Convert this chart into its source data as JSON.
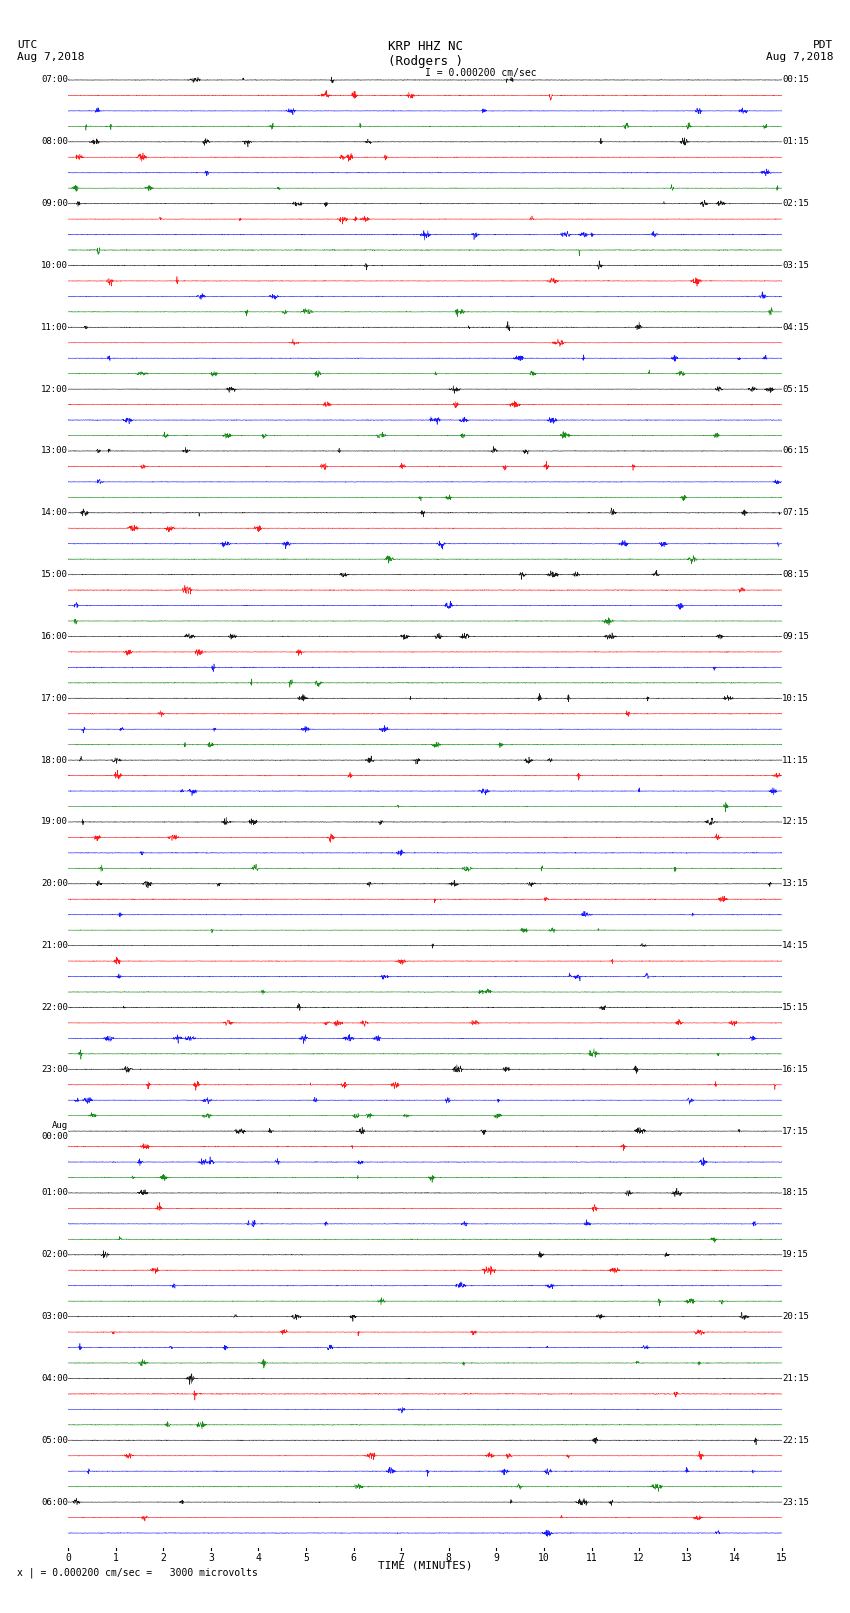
{
  "title_center": "KRP HHZ NC\n(Rodgers )",
  "title_left": "UTC\nAug 7,2018",
  "title_right": "PDT\nAug 7,2018",
  "scale_text": "I = 0.000200 cm/sec",
  "footer_text": "x | = 0.000200 cm/sec =   3000 microvolts",
  "xlabel": "TIME (MINUTES)",
  "colors": [
    "black",
    "red",
    "blue",
    "green"
  ],
  "left_times": [
    "07:00",
    "",
    "",
    "",
    "08:00",
    "",
    "",
    "",
    "09:00",
    "",
    "",
    "",
    "10:00",
    "",
    "",
    "",
    "11:00",
    "",
    "",
    "",
    "12:00",
    "",
    "",
    "",
    "13:00",
    "",
    "",
    "",
    "14:00",
    "",
    "",
    "",
    "15:00",
    "",
    "",
    "",
    "16:00",
    "",
    "",
    "",
    "17:00",
    "",
    "",
    "",
    "18:00",
    "",
    "",
    "",
    "19:00",
    "",
    "",
    "",
    "20:00",
    "",
    "",
    "",
    "21:00",
    "",
    "",
    "",
    "22:00",
    "",
    "",
    "",
    "23:00",
    "",
    "",
    "",
    "Aug\\n00:00",
    "",
    "",
    "",
    "01:00",
    "",
    "",
    "",
    "02:00",
    "",
    "",
    "",
    "03:00",
    "",
    "",
    "",
    "04:00",
    "",
    "",
    "",
    "05:00",
    "",
    "",
    "",
    "06:00",
    "",
    ""
  ],
  "right_times": [
    "00:15",
    "",
    "",
    "",
    "01:15",
    "",
    "",
    "",
    "02:15",
    "",
    "",
    "",
    "03:15",
    "",
    "",
    "",
    "04:15",
    "",
    "",
    "",
    "05:15",
    "",
    "",
    "",
    "06:15",
    "",
    "",
    "",
    "07:15",
    "",
    "",
    "",
    "08:15",
    "",
    "",
    "",
    "09:15",
    "",
    "",
    "",
    "10:15",
    "",
    "",
    "",
    "11:15",
    "",
    "",
    "",
    "12:15",
    "",
    "",
    "",
    "13:15",
    "",
    "",
    "",
    "14:15",
    "",
    "",
    "",
    "15:15",
    "",
    "",
    "",
    "16:15",
    "",
    "",
    "",
    "17:15",
    "",
    "",
    "",
    "18:15",
    "",
    "",
    "",
    "19:15",
    "",
    "",
    "",
    "20:15",
    "",
    "",
    "",
    "21:15",
    "",
    "",
    "",
    "22:15",
    "",
    "",
    "",
    "23:15",
    "",
    ""
  ],
  "n_rows": 95,
  "n_colors": 4,
  "time_minutes": 15,
  "sample_rate": 100,
  "noise_amp": 0.25,
  "signal_freq": 2.0,
  "bg_color": "white",
  "figsize": [
    8.5,
    16.13
  ],
  "dpi": 100
}
